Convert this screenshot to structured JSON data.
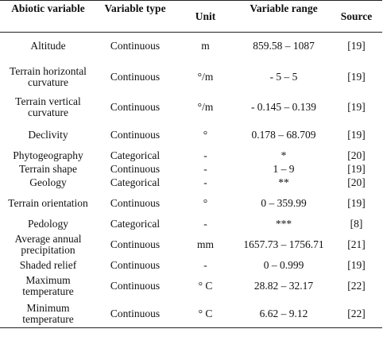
{
  "table": {
    "headers": [
      "Abiotic variable",
      "Variable type",
      "Unit",
      "Variable range",
      "Source"
    ],
    "rows": [
      {
        "variable": "Altitude",
        "type": "Continuous",
        "unit": "m",
        "range": "859.58 – 1087",
        "source": "[19]"
      },
      {
        "variable": "Terrain horizontal curvature",
        "type": "Continuous",
        "unit": "°/m",
        "range": "- 5 – 5",
        "source": "[19]"
      },
      {
        "variable": "Terrain vertical curvature",
        "type": "Continuous",
        "unit": "°/m",
        "range": "- 0.145 – 0.139",
        "source": "[19]"
      },
      {
        "variable": "Declivity",
        "type": "Continuous",
        "unit": "°",
        "range": "0.178 – 68.709",
        "source": "[19]"
      },
      {
        "variable": "Phytogeography",
        "type": "Categorical",
        "unit": "-",
        "range": "*",
        "source": "[20]"
      },
      {
        "variable": "Terrain shape",
        "type": "Continuous",
        "unit": "-",
        "range": "1 – 9",
        "source": "[19]"
      },
      {
        "variable": "Geology",
        "type": "Categorical",
        "unit": "-",
        "range": "**",
        "source": "[20]"
      },
      {
        "variable": "Terrain orientation",
        "type": "Continuous",
        "unit": "°",
        "range": "0 – 359.99",
        "source": "[19]"
      },
      {
        "variable": "Pedology",
        "type": "Categorical",
        "unit": "-",
        "range": "***",
        "source": "[8]"
      },
      {
        "variable": "Average annual precipitation",
        "type": "Continuous",
        "unit": "mm",
        "range": "1657.73 – 1756.71",
        "source": "[21]"
      },
      {
        "variable": "Shaded relief",
        "type": "Continuous",
        "unit": "-",
        "range": "0 – 0.999",
        "source": "[19]"
      },
      {
        "variable": "Maximum temperature",
        "type": "Continuous",
        "unit": "° C",
        "range": "28.82 – 32.17",
        "source": "[22]"
      },
      {
        "variable": "Minimum temperature",
        "type": "Continuous",
        "unit": "° C",
        "range": "6.62 – 9.12",
        "source": "[22]"
      }
    ]
  }
}
